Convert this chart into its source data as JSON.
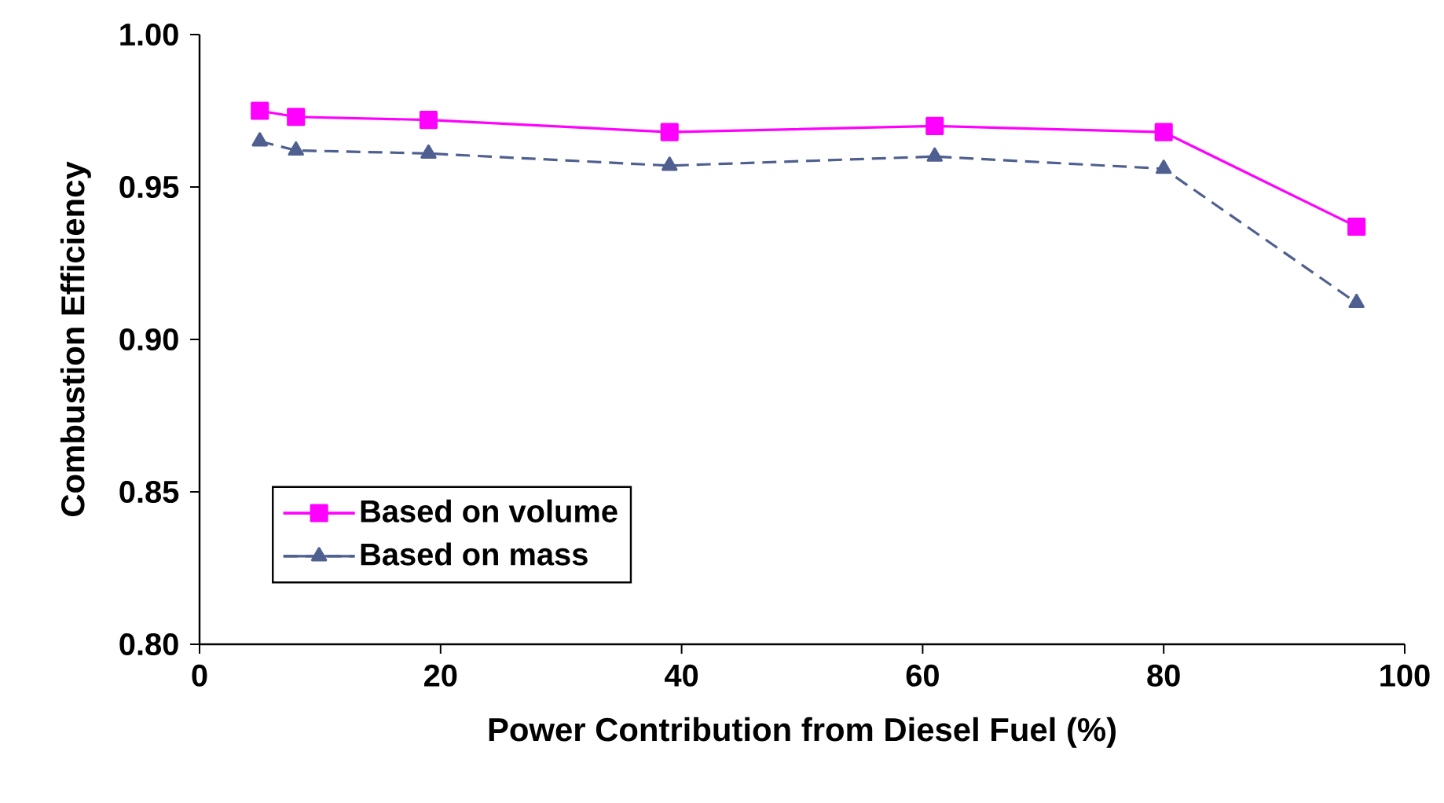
{
  "chart_data": {
    "type": "line",
    "xlabel": "Power Contribution from Diesel Fuel (%)",
    "ylabel": "Combustion Efficiency",
    "xlim": [
      0,
      100
    ],
    "xticks": [
      0,
      20,
      40,
      60,
      80,
      100
    ],
    "ylim": [
      0.8,
      1.0
    ],
    "yticks": [
      {
        "value": 0.8,
        "label": "0.80"
      },
      {
        "value": 0.85,
        "label": "0.85"
      },
      {
        "value": 0.9,
        "label": "0.90"
      },
      {
        "value": 0.95,
        "label": "0.95"
      },
      {
        "value": 1.0,
        "label": "1.00"
      }
    ],
    "grid": false,
    "legend": "bottom left",
    "series": [
      {
        "name": "Based on volume",
        "color": "#ff00ff",
        "marker": "square",
        "line_style": "solid",
        "x": [
          5,
          8,
          19,
          39,
          61,
          80,
          96
        ],
        "values": [
          0.975,
          0.973,
          0.972,
          0.968,
          0.97,
          0.968,
          0.937
        ]
      },
      {
        "name": "Based on mass",
        "color": "#4f5f8f",
        "marker": "triangle",
        "line_style": "dashed",
        "x": [
          5,
          8,
          19,
          39,
          61,
          80,
          96
        ],
        "values": [
          0.965,
          0.962,
          0.961,
          0.957,
          0.96,
          0.956,
          0.912
        ]
      }
    ]
  }
}
